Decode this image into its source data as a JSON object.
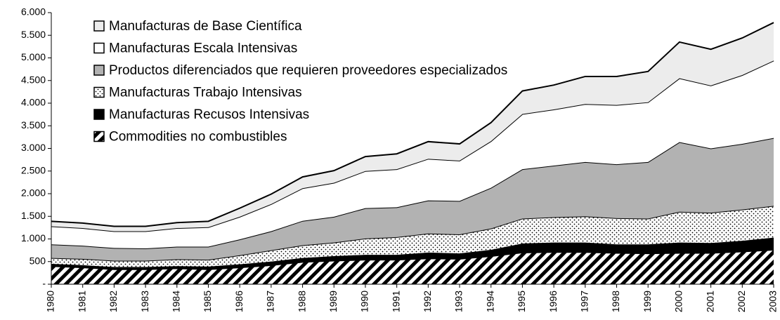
{
  "chart_data": {
    "type": "stacked_area",
    "categories": [
      "1980",
      "1981",
      "1982",
      "1983",
      "1984",
      "1985",
      "1986",
      "1987",
      "1988",
      "1989",
      "1990",
      "1991",
      "1992",
      "1993",
      "1994",
      "1995",
      "1996",
      "1997",
      "1998",
      "1999",
      "2000",
      "2001",
      "2002",
      "2003"
    ],
    "series": [
      {
        "name": "Commodities no combustibles",
        "color": "#000000",
        "pattern": "hatch",
        "values": [
          400,
          370,
          330,
          330,
          350,
          330,
          370,
          420,
          490,
          520,
          540,
          540,
          570,
          560,
          620,
          700,
          710,
          710,
          690,
          680,
          690,
          690,
          720,
          760
        ]
      },
      {
        "name": "Manufacturas Recusos Intensivas",
        "color": "#000000",
        "values": [
          50,
          50,
          50,
          50,
          50,
          60,
          70,
          80,
          90,
          100,
          110,
          110,
          130,
          120,
          140,
          200,
          210,
          210,
          190,
          200,
          230,
          220,
          240,
          270
        ]
      },
      {
        "name": "Manufacturas Trabajo Intensivas",
        "color": "#000000",
        "pattern": "dots",
        "values": [
          130,
          140,
          140,
          140,
          150,
          150,
          200,
          250,
          280,
          300,
          360,
          390,
          420,
          420,
          470,
          550,
          560,
          580,
          580,
          570,
          680,
          670,
          690,
          700
        ]
      },
      {
        "name": "Productos diferenciados que requieren proveedores especializados",
        "color": "#b2b2b2",
        "values": [
          300,
          290,
          280,
          270,
          280,
          290,
          350,
          420,
          540,
          570,
          670,
          660,
          730,
          740,
          900,
          1090,
          1140,
          1200,
          1190,
          1250,
          1540,
          1420,
          1450,
          1500
        ]
      },
      {
        "name": "Manufacturas Escala Intensivas",
        "color": "#ffffff",
        "values": [
          400,
          390,
          370,
          380,
          410,
          430,
          500,
          600,
          720,
          750,
          820,
          840,
          920,
          890,
          1030,
          1220,
          1240,
          1280,
          1310,
          1320,
          1410,
          1390,
          1520,
          1710
        ]
      },
      {
        "name": "Manufacturas de Base Científica",
        "color": "#ececec",
        "values": [
          110,
          110,
          110,
          110,
          120,
          130,
          190,
          220,
          250,
          270,
          320,
          340,
          380,
          370,
          410,
          510,
          540,
          610,
          630,
          680,
          800,
          800,
          820,
          840
        ]
      }
    ],
    "ylim": [
      0,
      6000
    ],
    "yticks": [
      {
        "value": 0,
        "label": "-"
      },
      500,
      {
        "value": 1000,
        "label": "1.000"
      },
      {
        "value": 1500,
        "label": "1.500"
      },
      {
        "value": 2000,
        "label": "2.000"
      },
      {
        "value": 2500,
        "label": "2.500"
      },
      {
        "value": 3000,
        "label": "3.000"
      },
      {
        "value": 3500,
        "label": "3.500"
      },
      {
        "value": 4000,
        "label": "4.000"
      },
      {
        "value": 4500,
        "label": "4.500"
      },
      {
        "value": 5000,
        "label": "5.000"
      },
      {
        "value": 5500,
        "label": "5.500"
      },
      {
        "value": 6000,
        "label": "6.000"
      }
    ],
    "legend": "top-left"
  }
}
